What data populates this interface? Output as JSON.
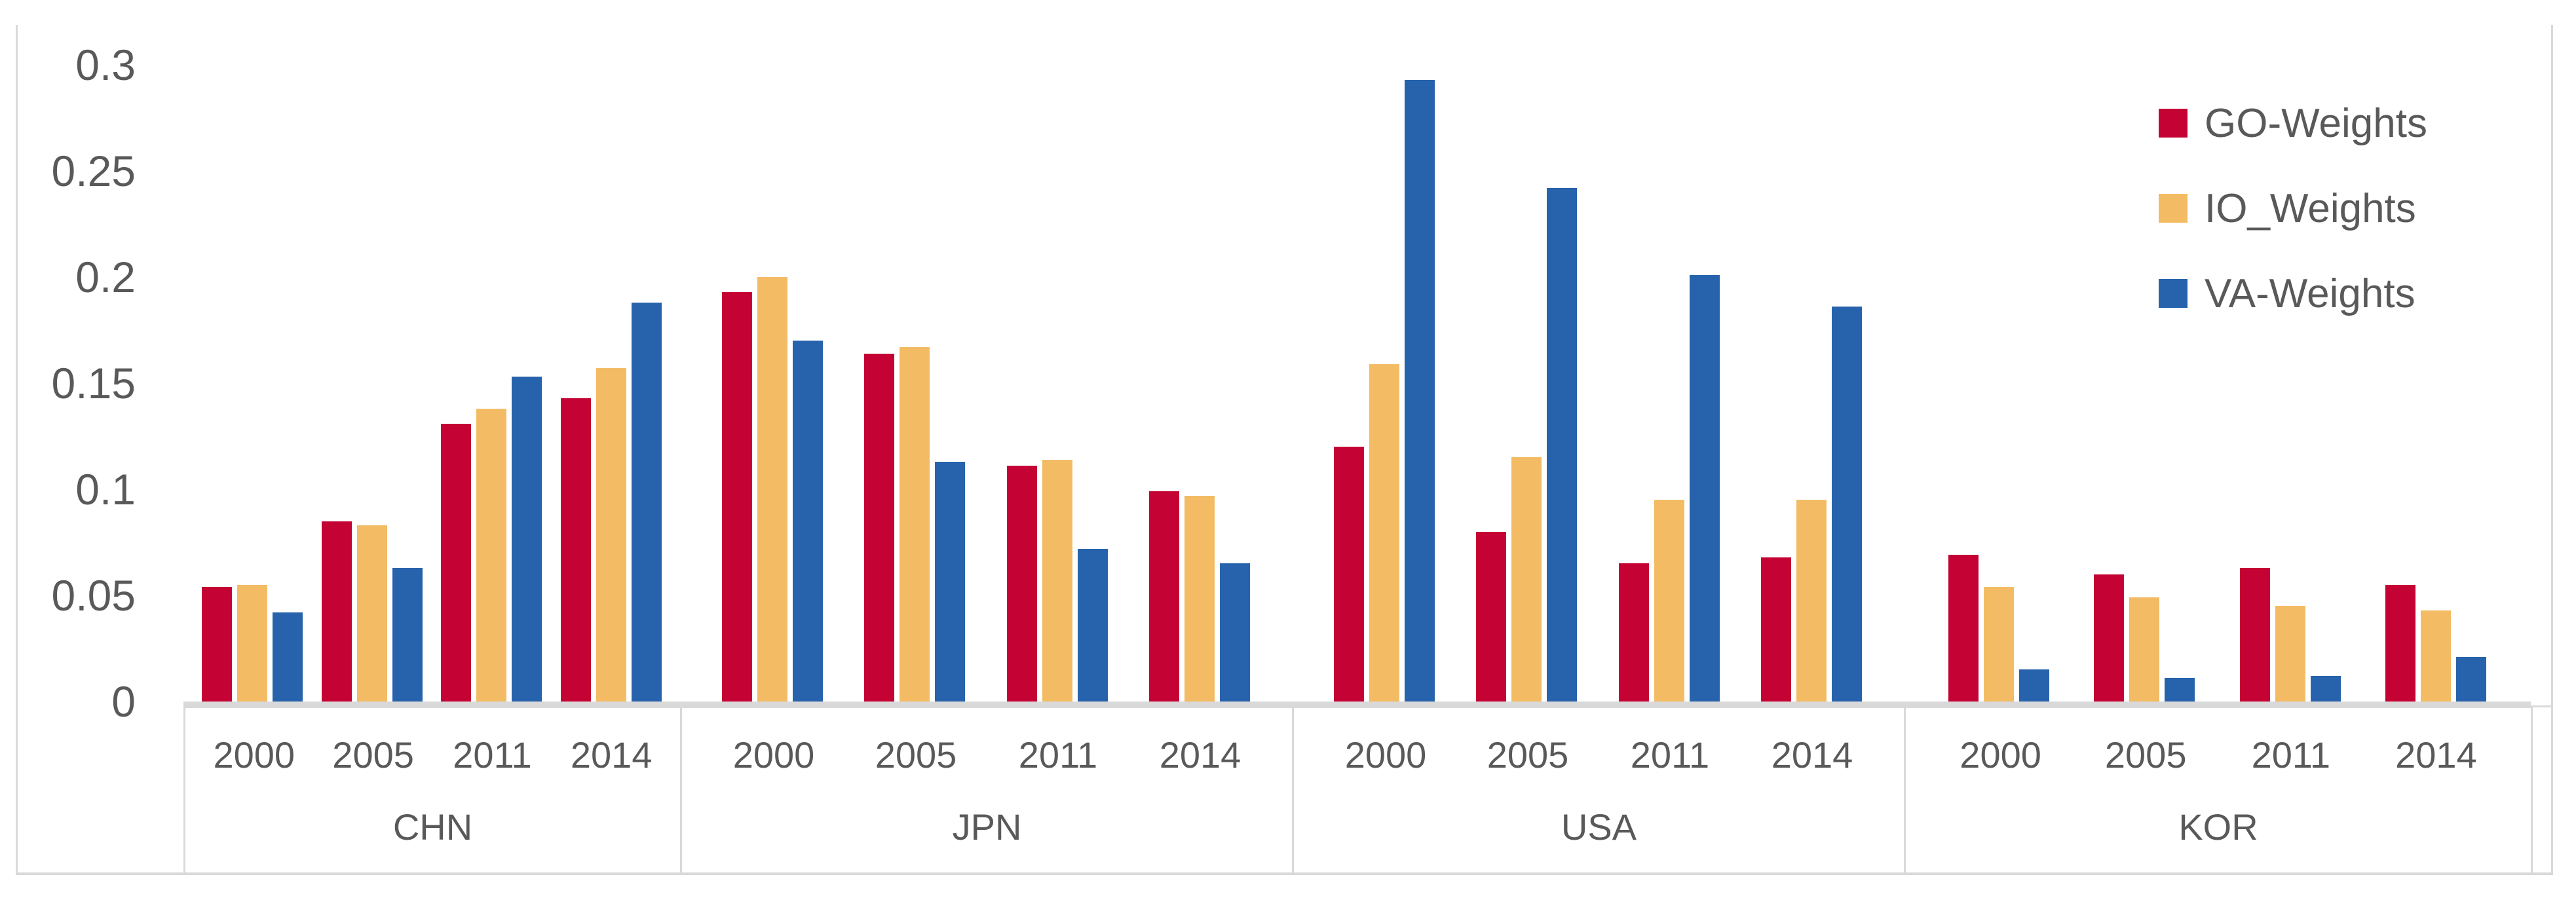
{
  "chart_data": {
    "type": "bar",
    "title": "",
    "xlabel": "",
    "ylabel": "",
    "ylim": [
      0,
      0.3
    ],
    "y_tick_labels": [
      "0",
      "0.05",
      "0.1",
      "0.15",
      "0.2",
      "0.25",
      "0.3"
    ],
    "y_tick_values": [
      0,
      0.05,
      0.1,
      0.15,
      0.2,
      0.25,
      0.3
    ],
    "grid": false,
    "legend_position": "top-right",
    "series": [
      {
        "name": "GO-Weights",
        "color": "#C40233"
      },
      {
        "name": "IO_Weights",
        "color": "#F3BC64"
      },
      {
        "name": "VA-Weights",
        "color": "#2763AC"
      }
    ],
    "year_categories": [
      "2000",
      "2005",
      "2011",
      "2014"
    ],
    "groups": [
      {
        "label": "CHN",
        "years": [
          "2000",
          "2005",
          "2011",
          "2014"
        ],
        "series": [
          [
            0.054,
            0.085,
            0.131,
            0.143
          ],
          [
            0.055,
            0.083,
            0.138,
            0.157
          ],
          [
            0.042,
            0.063,
            0.153,
            0.188
          ]
        ]
      },
      {
        "label": "JPN",
        "years": [
          "2000",
          "2005",
          "2011",
          "2014"
        ],
        "series": [
          [
            0.193,
            0.164,
            0.111,
            0.099
          ],
          [
            0.2,
            0.167,
            0.114,
            0.097
          ],
          [
            0.17,
            0.113,
            0.072,
            0.065
          ]
        ]
      },
      {
        "label": "USA",
        "years": [
          "2000",
          "2005",
          "2011",
          "2014"
        ],
        "series": [
          [
            0.12,
            0.08,
            0.065,
            0.068
          ],
          [
            0.159,
            0.115,
            0.095,
            0.095
          ],
          [
            0.293,
            0.242,
            0.201,
            0.186
          ]
        ]
      },
      {
        "label": "KOR",
        "years": [
          "2000",
          "2005",
          "2011",
          "2014"
        ],
        "series": [
          [
            0.069,
            0.06,
            0.063,
            0.055
          ],
          [
            0.054,
            0.049,
            0.045,
            0.043
          ],
          [
            0.015,
            0.011,
            0.012,
            0.021
          ]
        ]
      }
    ]
  },
  "colors": {
    "axis_text": "#595959",
    "border": "#D9D9D9",
    "background": "#FFFFFF"
  }
}
